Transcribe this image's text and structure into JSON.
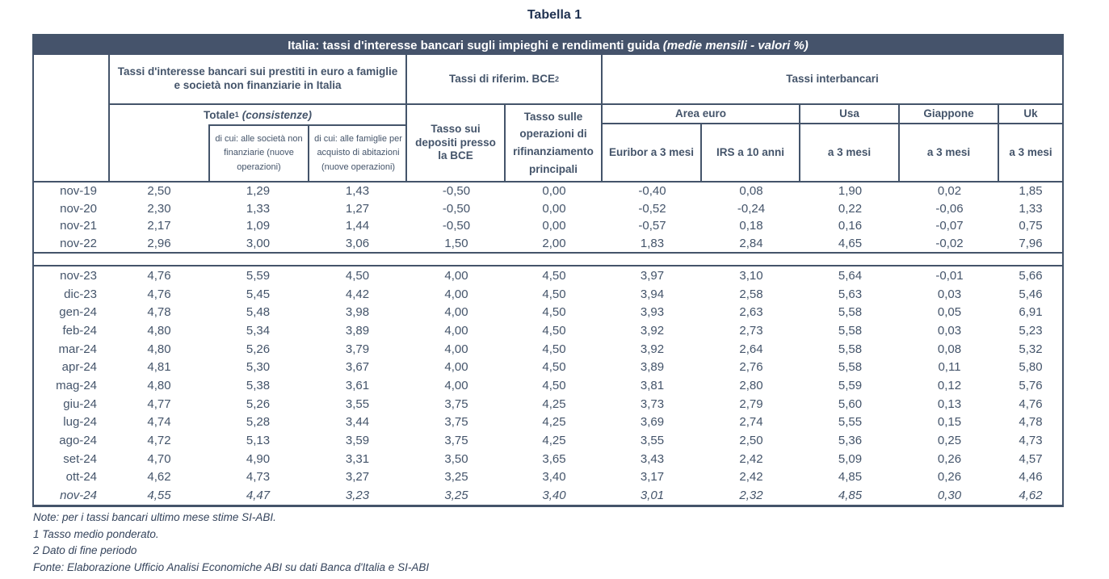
{
  "page_title": "Tabella 1",
  "colors": {
    "header_bg": "#45536B",
    "border": "#44546A",
    "text": "#44546A",
    "titlebar_text": "#FFFFFF",
    "doc_title_text": "#1F3150"
  },
  "table": {
    "titlebar_bold": "Italia: tassi d'interesse bancari sugli impieghi e rendimenti guida ",
    "titlebar_italic": "(medie mensili - valori %)",
    "groups": {
      "loans": "Tassi d'interesse bancari sui prestiti in euro a famiglie e società non finanziarie in Italia",
      "bce": "Tassi di riferim. BCE",
      "bce_sup": "2",
      "interbank": "Tassi interbancari"
    },
    "subheaders": {
      "totale": "Totale",
      "totale_sup": "1",
      "totale_note": "(consistenze)",
      "dicui_societa": "di cui: alle società non finanziarie (nuove operazioni)",
      "dicui_famiglie": "di cui: alle famiglie per acquisto di abitazioni (nuove operazioni)",
      "depositi": "Tasso sui depositi presso la BCE",
      "rifinanziamento": "Tasso sulle operazioni di rifinanziamento principali",
      "area_euro": "Area euro",
      "usa": "Usa",
      "giappone": "Giappone",
      "uk": "Uk",
      "euribor": "Euribor a 3 mesi",
      "irs": "IRS a 10 anni",
      "usa_3m": "a 3 mesi",
      "giappone_3m": "a 3 mesi",
      "uk_3m": "a 3 mesi"
    },
    "rows_annual": [
      {
        "label": "nov-19",
        "values": [
          "2,50",
          "1,29",
          "1,43",
          "-0,50",
          "0,00",
          "-0,40",
          "0,08",
          "1,90",
          "0,02",
          "1,85"
        ]
      },
      {
        "label": "nov-20",
        "values": [
          "2,30",
          "1,33",
          "1,27",
          "-0,50",
          "0,00",
          "-0,52",
          "-0,24",
          "0,22",
          "-0,06",
          "1,33"
        ]
      },
      {
        "label": "nov-21",
        "values": [
          "2,17",
          "1,09",
          "1,44",
          "-0,50",
          "0,00",
          "-0,57",
          "0,18",
          "0,16",
          "-0,07",
          "0,75"
        ]
      },
      {
        "label": "nov-22",
        "values": [
          "2,96",
          "3,00",
          "3,06",
          "1,50",
          "2,00",
          "1,83",
          "2,84",
          "4,65",
          "-0,02",
          "7,96"
        ]
      }
    ],
    "rows_monthly": [
      {
        "label": "nov-23",
        "values": [
          "4,76",
          "5,59",
          "4,50",
          "4,00",
          "4,50",
          "3,97",
          "3,10",
          "5,64",
          "-0,01",
          "5,66"
        ]
      },
      {
        "label": "dic-23",
        "values": [
          "4,76",
          "5,45",
          "4,42",
          "4,00",
          "4,50",
          "3,94",
          "2,58",
          "5,63",
          "0,03",
          "5,46"
        ]
      },
      {
        "label": "gen-24",
        "values": [
          "4,78",
          "5,48",
          "3,98",
          "4,00",
          "4,50",
          "3,93",
          "2,63",
          "5,58",
          "0,05",
          "6,91"
        ]
      },
      {
        "label": "feb-24",
        "values": [
          "4,80",
          "5,34",
          "3,89",
          "4,00",
          "4,50",
          "3,92",
          "2,73",
          "5,58",
          "0,03",
          "5,23"
        ]
      },
      {
        "label": "mar-24",
        "values": [
          "4,80",
          "5,26",
          "3,79",
          "4,00",
          "4,50",
          "3,92",
          "2,64",
          "5,58",
          "0,08",
          "5,32"
        ]
      },
      {
        "label": "apr-24",
        "values": [
          "4,81",
          "5,30",
          "3,67",
          "4,00",
          "4,50",
          "3,89",
          "2,76",
          "5,58",
          "0,11",
          "5,80"
        ]
      },
      {
        "label": "mag-24",
        "values": [
          "4,80",
          "5,38",
          "3,61",
          "4,00",
          "4,50",
          "3,81",
          "2,80",
          "5,59",
          "0,12",
          "5,76"
        ]
      },
      {
        "label": "giu-24",
        "values": [
          "4,77",
          "5,26",
          "3,55",
          "3,75",
          "4,25",
          "3,73",
          "2,79",
          "5,60",
          "0,13",
          "4,76"
        ]
      },
      {
        "label": "lug-24",
        "values": [
          "4,74",
          "5,28",
          "3,44",
          "3,75",
          "4,25",
          "3,69",
          "2,74",
          "5,55",
          "0,15",
          "4,78"
        ]
      },
      {
        "label": "ago-24",
        "values": [
          "4,72",
          "5,13",
          "3,59",
          "3,75",
          "4,25",
          "3,55",
          "2,50",
          "5,36",
          "0,25",
          "4,73"
        ]
      },
      {
        "label": "set-24",
        "values": [
          "4,70",
          "4,90",
          "3,31",
          "3,50",
          "3,65",
          "3,43",
          "2,42",
          "5,09",
          "0,26",
          "4,57"
        ]
      },
      {
        "label": "ott-24",
        "values": [
          "4,62",
          "4,73",
          "3,27",
          "3,25",
          "3,40",
          "3,17",
          "2,42",
          "4,85",
          "0,26",
          "4,46"
        ]
      },
      {
        "label": "nov-24",
        "italic": true,
        "values": [
          "4,55",
          "4,47",
          "3,23",
          "3,25",
          "3,40",
          "3,01",
          "2,32",
          "4,85",
          "0,30",
          "4,62"
        ]
      }
    ]
  },
  "notes": [
    "Note: per i tassi bancari ultimo mese stime SI-ABI.",
    "1 Tasso medio ponderato.",
    "2 Dato di fine periodo",
    "Fonte: Elaborazione Ufficio Analisi Economiche ABI su dati Banca d'Italia e SI-ABI"
  ]
}
